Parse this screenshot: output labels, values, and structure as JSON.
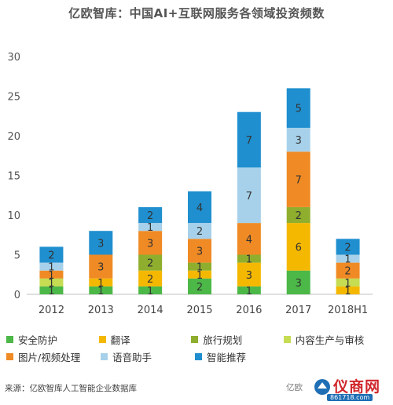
{
  "chart_data": {
    "type": "bar",
    "stacked": true,
    "title": "亿欧智库：中国AI+互联网服务各领域投资频数",
    "categories": [
      "2012",
      "2013",
      "2014",
      "2015",
      "2016",
      "2017",
      "2018H1"
    ],
    "ylim": [
      0,
      30
    ],
    "yticks": [
      0,
      5,
      10,
      15,
      20,
      25,
      30
    ],
    "grid": false,
    "legend_position": "bottom",
    "series": [
      {
        "name": "安全防护",
        "color": "#4cb848",
        "values": [
          1,
          1,
          1,
          2,
          1,
          3,
          0
        ]
      },
      {
        "name": "翻译",
        "color": "#f5b800",
        "values": [
          0,
          1,
          2,
          1,
          3,
          6,
          1
        ]
      },
      {
        "name": "旅行规划",
        "color": "#8fae2e",
        "values": [
          0,
          0,
          2,
          1,
          1,
          2,
          0
        ]
      },
      {
        "name": "内容生产与审核",
        "color": "#c5dc53",
        "values": [
          1,
          0,
          0,
          0,
          0,
          0,
          1
        ]
      },
      {
        "name": "图片/视频处理",
        "color": "#f08a24",
        "values": [
          1,
          3,
          3,
          3,
          4,
          7,
          2
        ]
      },
      {
        "name": "语音助手",
        "color": "#a7d1ea",
        "values": [
          1,
          0,
          1,
          2,
          7,
          3,
          1
        ]
      },
      {
        "name": "智能推荐",
        "color": "#1f8fcf",
        "values": [
          2,
          3,
          2,
          4,
          7,
          5,
          2
        ]
      }
    ]
  },
  "source": "来源：亿欧智库人工智能企业数据库",
  "watermark": {
    "brand": "仪商网",
    "url": "861718.com",
    "left_text": "亿欧"
  }
}
